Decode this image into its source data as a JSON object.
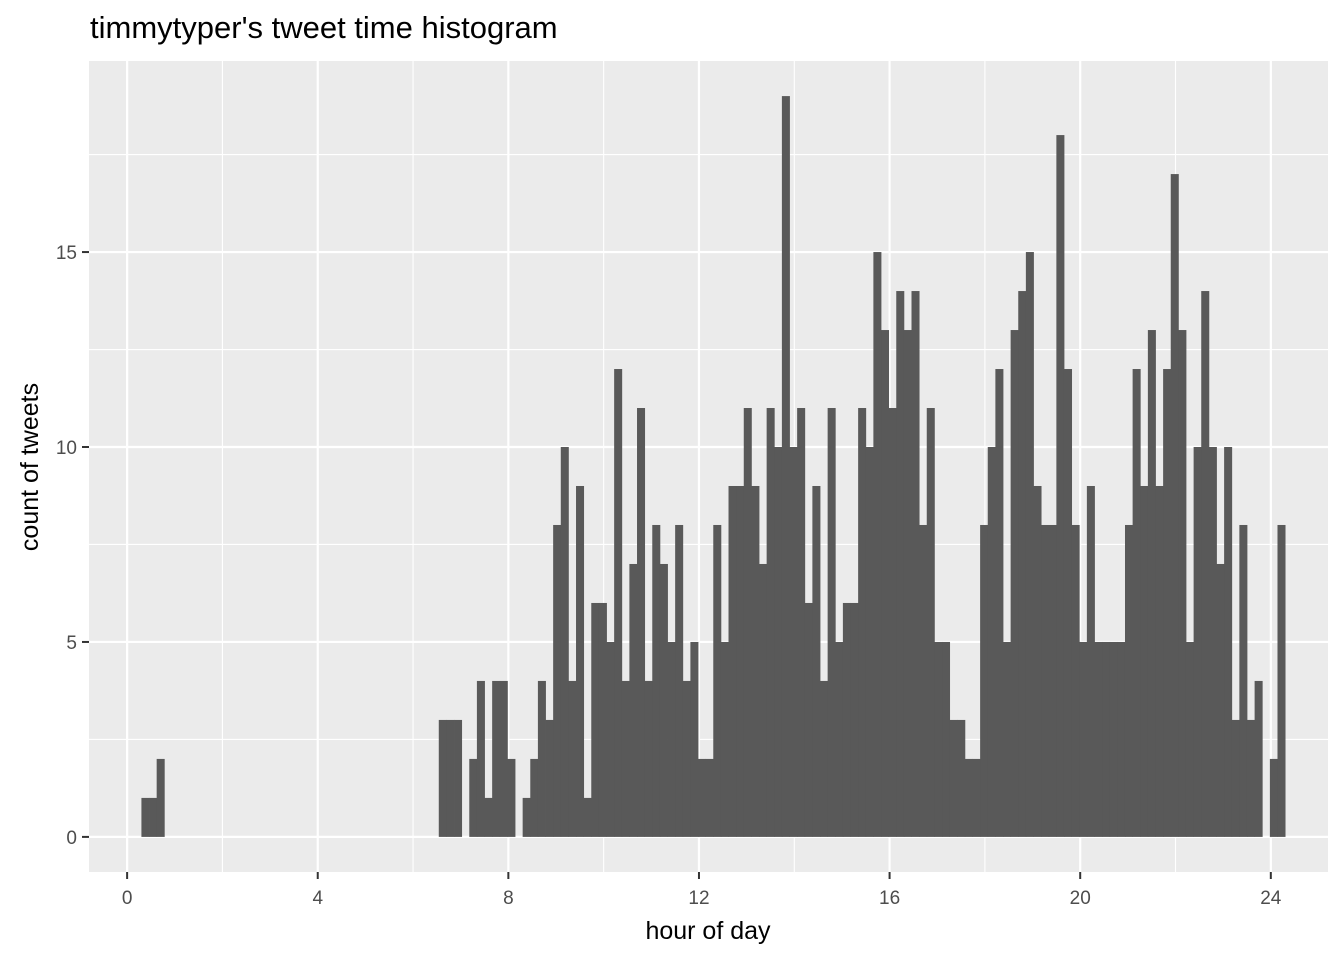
{
  "chart_data": {
    "type": "bar",
    "title": "timmytyper's tweet time histogram",
    "xlabel": "hour of day",
    "ylabel": "count of tweets",
    "xlim": [
      -0.8,
      25.2
    ],
    "ylim": [
      -0.9,
      19.9
    ],
    "x_ticks": [
      0,
      4,
      8,
      12,
      16,
      20,
      24
    ],
    "y_ticks": [
      0,
      5,
      10,
      15
    ],
    "bin_width": 0.16,
    "bin_start": 0.3,
    "bar_color": "#595959",
    "panel_color": "#ebebeb",
    "grid": true,
    "values": [
      1,
      1,
      2,
      0,
      0,
      0,
      0,
      0,
      0,
      0,
      0,
      0,
      0,
      0,
      0,
      0,
      0,
      0,
      0,
      0,
      0,
      0,
      0,
      0,
      0,
      0,
      0,
      0,
      0,
      0,
      0,
      0,
      0,
      0,
      0,
      0,
      0,
      0,
      0,
      3,
      3,
      3,
      0,
      2,
      4,
      1,
      4,
      4,
      2,
      0,
      1,
      2,
      4,
      3,
      8,
      10,
      4,
      9,
      1,
      6,
      6,
      5,
      12,
      4,
      7,
      11,
      4,
      8,
      7,
      5,
      8,
      4,
      5,
      2,
      2,
      8,
      5,
      9,
      9,
      11,
      9,
      7,
      11,
      10,
      19,
      10,
      11,
      6,
      9,
      4,
      11,
      5,
      6,
      6,
      11,
      10,
      15,
      13,
      11,
      14,
      13,
      14,
      8,
      11,
      5,
      5,
      3,
      3,
      2,
      2,
      8,
      10,
      12,
      5,
      13,
      14,
      15,
      9,
      8,
      8,
      18,
      12,
      8,
      5,
      9,
      5,
      5,
      5,
      5,
      8,
      12,
      9,
      13,
      9,
      12,
      17,
      13,
      5,
      10,
      14,
      10,
      7,
      10,
      3,
      8,
      3,
      4,
      0,
      2,
      8
    ]
  }
}
